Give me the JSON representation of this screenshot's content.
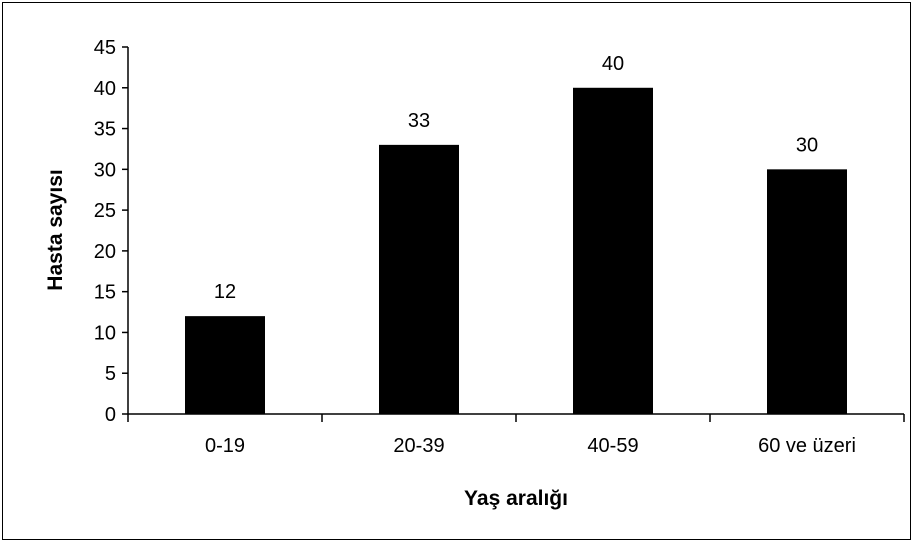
{
  "chart_data": {
    "type": "bar",
    "categories": [
      "0-19",
      "20-39",
      "40-59",
      "60 ve üzeri"
    ],
    "values": [
      12,
      33,
      40,
      30
    ],
    "data_labels": [
      "12",
      "33",
      "40",
      "30"
    ],
    "title": "",
    "xlabel": "Yaş aralığı",
    "ylabel": "Hasta sayısı",
    "ylim": [
      0,
      45
    ],
    "yticks": [
      0,
      5,
      10,
      15,
      20,
      25,
      30,
      35,
      40,
      45
    ],
    "grid": false,
    "legend": "none",
    "bar_color": "#000000"
  }
}
